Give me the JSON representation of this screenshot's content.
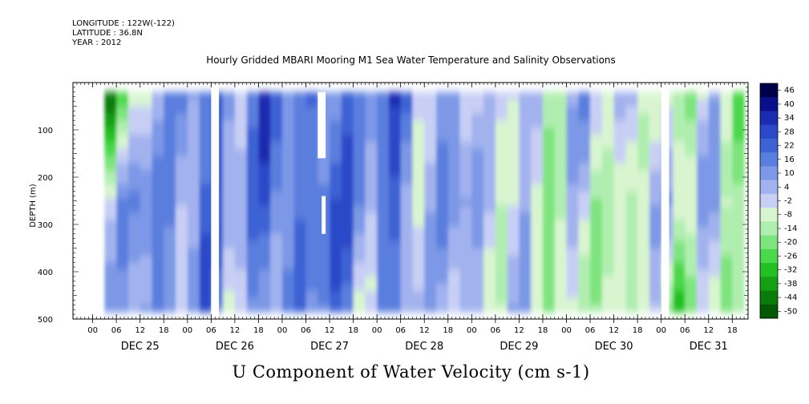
{
  "header": {
    "longitude": "LONGITUDE : 122W(-122)",
    "latitude": "LATITUDE : 36.8N",
    "year": "YEAR : 2012"
  },
  "chart_data": {
    "type": "heatmap",
    "title": "Hourly Gridded MBARI Mooring M1 Sea Water Temperature and Salinity Observations",
    "xlabel": "U Component of Water Velocity (cm s-1)",
    "ylabel": "DEPTH (m)",
    "x_range": [
      "2012-12-24 19:00",
      "2012-12-31 22:00"
    ],
    "y_range": [
      500,
      0
    ],
    "y_inverted": true,
    "y_ticks": [
      100,
      200,
      300,
      400,
      500
    ],
    "x_hour_ticks": [
      "00",
      "06",
      "12",
      "18",
      "00",
      "06",
      "12",
      "18",
      "00",
      "06",
      "12",
      "18",
      "00",
      "06",
      "12",
      "18",
      "00",
      "06",
      "12",
      "18",
      "00",
      "06",
      "12",
      "18",
      "00",
      "06",
      "12",
      "18"
    ],
    "x_day_labels": [
      "DEC 25",
      "DEC 26",
      "DEC 27",
      "DEC 28",
      "DEC 29",
      "DEC 30",
      "DEC 31"
    ],
    "data_extent": {
      "start": "2012-12-25 03:00",
      "end": "2012-12-31 20:00",
      "depth_min": 20,
      "depth_max": 485
    },
    "colorbar": {
      "levels": [
        -50,
        -44,
        -38,
        -32,
        -26,
        -20,
        -14,
        -8,
        -2,
        4,
        10,
        16,
        22,
        28,
        34,
        40,
        46
      ],
      "labels": [
        "46",
        "40",
        "34",
        "28",
        "22",
        "16",
        "10",
        "4",
        "-2",
        "-8",
        "-14",
        "-20",
        "-26",
        "-32",
        "-38",
        "-44",
        "-50"
      ],
      "colors": [
        "#00004a",
        "#0a0f8c",
        "#1a2cb0",
        "#2a48c8",
        "#3d62d4",
        "#5a7ede",
        "#7c98e6",
        "#a2b2ee",
        "#c8cff5",
        "#d8f5d0",
        "#b0eeb0",
        "#7ee47e",
        "#4cd84c",
        "#22c022",
        "#14a014",
        "#0a7c0a",
        "#045a04"
      ]
    },
    "gaps": [
      {
        "start": "2012-12-26 06:00",
        "end": "2012-12-26 08:00",
        "depth_from": 0,
        "depth_to": 500
      },
      {
        "start": "2012-12-27 09:00",
        "end": "2012-12-27 11:00",
        "depth_from": 20,
        "depth_to": 160
      },
      {
        "start": "2012-12-27 10:00",
        "end": "2012-12-27 11:00",
        "depth_from": 240,
        "depth_to": 320
      },
      {
        "start": "2012-12-31 00:00",
        "end": "2012-12-31 02:00",
        "depth_from": 0,
        "depth_to": 500
      }
    ],
    "field_samples_note": "",
    "u_profile_hourly_mean": [
      {
        "time": "2012-12-25 06:00",
        "u_surface": -30,
        "u_mid": 6,
        "u_deep": 10
      },
      {
        "time": "2012-12-25 18:00",
        "u_surface": 12,
        "u_mid": 18,
        "u_deep": 14
      },
      {
        "time": "2012-12-26 12:00",
        "u_surface": 20,
        "u_mid": 14,
        "u_deep": 8
      },
      {
        "time": "2012-12-27 06:00",
        "u_surface": 16,
        "u_mid": 24,
        "u_deep": 18
      },
      {
        "time": "2012-12-27 18:00",
        "u_surface": 22,
        "u_mid": 20,
        "u_deep": 12
      },
      {
        "time": "2012-12-28 12:00",
        "u_surface": 14,
        "u_mid": 10,
        "u_deep": 6
      },
      {
        "time": "2012-12-29 06:00",
        "u_surface": -4,
        "u_mid": 8,
        "u_deep": 2
      },
      {
        "time": "2012-12-29 18:00",
        "u_surface": 6,
        "u_mid": -8,
        "u_deep": -6
      },
      {
        "time": "2012-12-30 12:00",
        "u_surface": 4,
        "u_mid": -6,
        "u_deep": -10
      },
      {
        "time": "2012-12-31 06:00",
        "u_surface": -10,
        "u_mid": 4,
        "u_deep": -12
      }
    ]
  }
}
